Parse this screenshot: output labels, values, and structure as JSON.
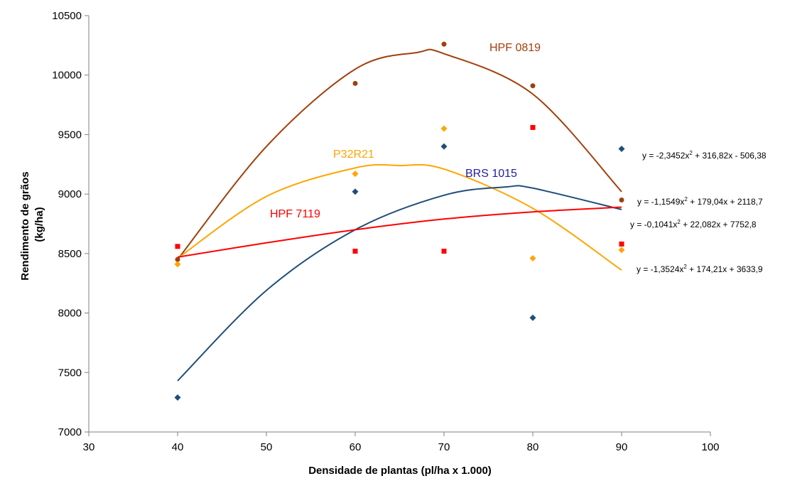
{
  "chart_data": {
    "type": "scatter",
    "xlabel": "Densidade de plantas (pl/ha x 1.000)",
    "ylabel": "Rendimento de grãos (kg/ha)",
    "xlim": [
      30,
      100
    ],
    "ylim": [
      7000,
      10500
    ],
    "xticks": [
      30,
      40,
      50,
      60,
      70,
      80,
      90,
      100
    ],
    "yticks": [
      7000,
      7500,
      8000,
      8500,
      9000,
      9500,
      10000,
      10500
    ],
    "grid": false,
    "legend": "none",
    "series": [
      {
        "name": "HPF 0819",
        "color": "#a0400d",
        "marker": "circle",
        "points": [
          [
            40,
            8450
          ],
          [
            60,
            9930
          ],
          [
            70,
            10260
          ],
          [
            80,
            9910
          ],
          [
            90,
            8950
          ]
        ],
        "trend_coeffs": [
          -2.3452,
          316.82,
          -506.38
        ],
        "trend_display": [
          [
            40,
            8450
          ],
          [
            50,
            9400
          ],
          [
            60,
            10050
          ],
          [
            67,
            10190
          ],
          [
            70,
            10180
          ],
          [
            80,
            9840
          ],
          [
            90,
            9020
          ]
        ],
        "equation_parts": [
          "y = -2,3452x",
          "2",
          " + 316,82x - 506,38"
        ]
      },
      {
        "name": "P32R21",
        "color": "#ffa500",
        "marker": "diamond",
        "points": [
          [
            40,
            8410
          ],
          [
            60,
            9170
          ],
          [
            70,
            9550
          ],
          [
            80,
            8460
          ],
          [
            90,
            8530
          ]
        ],
        "trend_coeffs": [
          -1.3524,
          174.21,
          3633.9
        ],
        "trend_display": [
          [
            40,
            8460
          ],
          [
            50,
            8980
          ],
          [
            60,
            9220
          ],
          [
            65,
            9240
          ],
          [
            70,
            9210
          ],
          [
            80,
            8880
          ],
          [
            90,
            8360
          ]
        ],
        "equation_parts": [
          "y = -1,3524x",
          "2",
          " + 174,21x + 3633,9"
        ]
      },
      {
        "name": "BRS 1015",
        "color": "#1f4e79",
        "marker": "diamond",
        "points": [
          [
            40,
            7290
          ],
          [
            60,
            9020
          ],
          [
            70,
            9400
          ],
          [
            80,
            7960
          ],
          [
            90,
            9380
          ]
        ],
        "trend_coeffs": [
          -1.1549,
          179.04,
          2118.7
        ],
        "trend_display": [
          [
            40,
            7430
          ],
          [
            50,
            8190
          ],
          [
            60,
            8700
          ],
          [
            70,
            8990
          ],
          [
            77,
            9060
          ],
          [
            80,
            9050
          ],
          [
            90,
            8870
          ]
        ],
        "equation_parts": [
          "y = -1,1549x",
          "2",
          " + 179,04x + 2118,7"
        ]
      },
      {
        "name": "HPF 7119",
        "color": "#ff0000",
        "marker": "square",
        "points": [
          [
            40,
            8560
          ],
          [
            60,
            8520
          ],
          [
            70,
            8520
          ],
          [
            80,
            9560
          ],
          [
            90,
            8580
          ]
        ],
        "trend_coeffs": [
          -0.1041,
          22.082,
          7752.8
        ],
        "trend_display": [
          [
            40,
            8470
          ],
          [
            50,
            8590
          ],
          [
            60,
            8700
          ],
          [
            70,
            8790
          ],
          [
            80,
            8850
          ],
          [
            90,
            8890
          ]
        ],
        "equation_parts": [
          "y = -0,1041x",
          "2",
          " + 22,082x + 7752,8"
        ]
      }
    ]
  }
}
